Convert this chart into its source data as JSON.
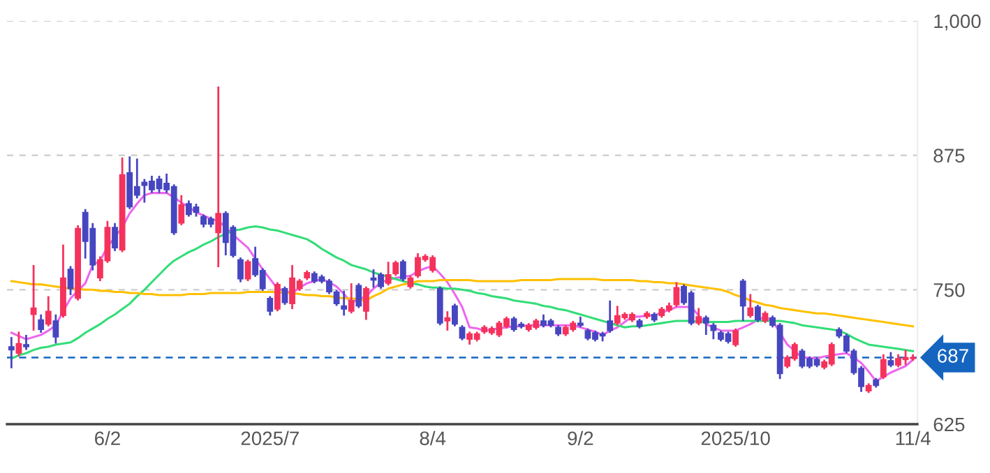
{
  "chart_data": {
    "type": "candlestick",
    "categories": [
      null,
      null,
      null,
      null,
      null,
      null,
      null,
      null,
      null,
      null,
      null,
      null,
      null,
      "6/2",
      null,
      null,
      null,
      null,
      null,
      null,
      null,
      null,
      null,
      null,
      null,
      null,
      null,
      null,
      null,
      null,
      null,
      null,
      null,
      null,
      null,
      "2025/7",
      null,
      null,
      null,
      null,
      null,
      null,
      null,
      null,
      null,
      null,
      null,
      null,
      null,
      null,
      null,
      null,
      null,
      null,
      null,
      null,
      null,
      "8/4",
      null,
      null,
      null,
      null,
      null,
      null,
      null,
      null,
      null,
      null,
      null,
      null,
      null,
      null,
      null,
      null,
      null,
      null,
      null,
      "9/2",
      null,
      null,
      null,
      null,
      null,
      null,
      null,
      null,
      null,
      null,
      null,
      null,
      null,
      null,
      null,
      null,
      null,
      null,
      null,
      null,
      "2025/10",
      null,
      null,
      null,
      null,
      null,
      null,
      null,
      null,
      null,
      null,
      null,
      null,
      null,
      null,
      null,
      null,
      null,
      null,
      null,
      null,
      null,
      null,
      null,
      "11/4"
    ],
    "ylim": [
      625,
      1000
    ],
    "yticks": [
      {
        "value": 625,
        "label": "625"
      },
      {
        "value": 750,
        "label": "750"
      },
      {
        "value": 875,
        "label": "875"
      },
      {
        "value": 1000,
        "label": "1,000"
      }
    ],
    "grid": "y",
    "ref_lines": [
      {
        "axis": "y",
        "value": 687,
        "label": "687",
        "color": "#1565c0",
        "line_style": "dashed"
      }
    ],
    "ohlc": [
      [
        697,
        706,
        677,
        694
      ],
      [
        691,
        711,
        688,
        700
      ],
      [
        699,
        708,
        694,
        697
      ],
      [
        727,
        773,
        712,
        733
      ],
      [
        722,
        727,
        710,
        713
      ],
      [
        718,
        744,
        716,
        730
      ],
      [
        721,
        727,
        700,
        706
      ],
      [
        726,
        792,
        724,
        761
      ],
      [
        769,
        772,
        745,
        751
      ],
      [
        742,
        810,
        740,
        807
      ],
      [
        822,
        825,
        779,
        795
      ],
      [
        807,
        812,
        768,
        773
      ],
      [
        761,
        781,
        758,
        778
      ],
      [
        777,
        814,
        775,
        808
      ],
      [
        808,
        812,
        786,
        789
      ],
      [
        787,
        873,
        785,
        857
      ],
      [
        859,
        874,
        825,
        827
      ],
      [
        846,
        872,
        835,
        838
      ],
      [
        850,
        853,
        831,
        847
      ],
      [
        851,
        856,
        840,
        843
      ],
      [
        853,
        856,
        840,
        844
      ],
      [
        849,
        858,
        840,
        843
      ],
      [
        846,
        848,
        801,
        803
      ],
      [
        812,
        838,
        810,
        829
      ],
      [
        830,
        833,
        818,
        820
      ],
      [
        827,
        830,
        818,
        822
      ],
      [
        818,
        820,
        808,
        811
      ],
      [
        816,
        818,
        808,
        811
      ],
      [
        803,
        939,
        771,
        821
      ],
      [
        821,
        823,
        782,
        794
      ],
      [
        808,
        810,
        780,
        782
      ],
      [
        778,
        780,
        757,
        760
      ],
      [
        760,
        778,
        758,
        776
      ],
      [
        779,
        790,
        762,
        764
      ],
      [
        768,
        770,
        749,
        751
      ],
      [
        742,
        744,
        726,
        730
      ],
      [
        732,
        757,
        730,
        755
      ],
      [
        751,
        753,
        736,
        738
      ],
      [
        737,
        773,
        732,
        761
      ],
      [
        751,
        760,
        749,
        758
      ],
      [
        761,
        768,
        759,
        766
      ],
      [
        765,
        767,
        756,
        758
      ],
      [
        762,
        764,
        756,
        758
      ],
      [
        758,
        760,
        746,
        748
      ],
      [
        748,
        750,
        735,
        737
      ],
      [
        735,
        749,
        726,
        732
      ],
      [
        730,
        756,
        728,
        740
      ],
      [
        754,
        756,
        733,
        735
      ],
      [
        730,
        753,
        722,
        751
      ],
      [
        761,
        769,
        752,
        759
      ],
      [
        764,
        766,
        751,
        753
      ],
      [
        756,
        776,
        754,
        764
      ],
      [
        765,
        777,
        763,
        775
      ],
      [
        776,
        778,
        758,
        760
      ],
      [
        753,
        763,
        751,
        761
      ],
      [
        763,
        784,
        761,
        780
      ],
      [
        778,
        783,
        776,
        781
      ],
      [
        768,
        782,
        766,
        780
      ],
      [
        751,
        753,
        717,
        719
      ],
      [
        721,
        730,
        712,
        724
      ],
      [
        735,
        737,
        716,
        718
      ],
      [
        715,
        717,
        703,
        705
      ],
      [
        704,
        711,
        699,
        709
      ],
      [
        704,
        711,
        702,
        709
      ],
      [
        711,
        717,
        709,
        715
      ],
      [
        710,
        716,
        708,
        714
      ],
      [
        708,
        721,
        706,
        719
      ],
      [
        716,
        725,
        714,
        723
      ],
      [
        723,
        725,
        711,
        713
      ],
      [
        718,
        720,
        714,
        716
      ],
      [
        713,
        719,
        711,
        717
      ],
      [
        715,
        723,
        713,
        721
      ],
      [
        721,
        727,
        715,
        717
      ],
      [
        721,
        723,
        715,
        717
      ],
      [
        715,
        717,
        707,
        709
      ],
      [
        709,
        717,
        707,
        715
      ],
      [
        713,
        721,
        711,
        719
      ],
      [
        719,
        725,
        715,
        717
      ],
      [
        712,
        714,
        703,
        705
      ],
      [
        710,
        712,
        702,
        704
      ],
      [
        709,
        711,
        702,
        707
      ],
      [
        721,
        740,
        710,
        712
      ],
      [
        719,
        735,
        717,
        726
      ],
      [
        724,
        729,
        722,
        727
      ],
      [
        722,
        729,
        720,
        727
      ],
      [
        721,
        723,
        714,
        716
      ],
      [
        725,
        730,
        723,
        728
      ],
      [
        727,
        729,
        720,
        722
      ],
      [
        726,
        734,
        724,
        732
      ],
      [
        731,
        738,
        729,
        735
      ],
      [
        736,
        757,
        734,
        752
      ],
      [
        753,
        755,
        736,
        738
      ],
      [
        747,
        749,
        717,
        719
      ],
      [
        719,
        733,
        717,
        725
      ],
      [
        724,
        726,
        708,
        719
      ],
      [
        717,
        719,
        704,
        712
      ],
      [
        710,
        712,
        702,
        704
      ],
      [
        709,
        711,
        700,
        702
      ],
      [
        699,
        714,
        697,
        712
      ],
      [
        758,
        760,
        721,
        735
      ],
      [
        726,
        746,
        724,
        733
      ],
      [
        734,
        736,
        720,
        722
      ],
      [
        721,
        730,
        719,
        728
      ],
      [
        724,
        726,
        715,
        717
      ],
      [
        717,
        719,
        667,
        672
      ],
      [
        679,
        689,
        677,
        687
      ],
      [
        686,
        701,
        684,
        699
      ],
      [
        693,
        695,
        677,
        679
      ],
      [
        686,
        688,
        677,
        679
      ],
      [
        685,
        687,
        678,
        680
      ],
      [
        678,
        685,
        676,
        683
      ],
      [
        681,
        701,
        679,
        699
      ],
      [
        713,
        715,
        705,
        707
      ],
      [
        707,
        709,
        691,
        693
      ],
      [
        693,
        695,
        671,
        673
      ],
      [
        677,
        679,
        655,
        660
      ],
      [
        656,
        663,
        654,
        661
      ],
      [
        666,
        668,
        659,
        661
      ],
      [
        669,
        690,
        667,
        685
      ],
      [
        684,
        692,
        678,
        680
      ],
      [
        680,
        690,
        678,
        686
      ],
      [
        685,
        694,
        680,
        687
      ],
      [
        686,
        690,
        684,
        687
      ]
    ],
    "colors": [
      "#4646c0",
      "#f5325c",
      "#4646c0",
      "#f5325c",
      "#4646c0",
      "#f5325c",
      "#4646c0",
      "#f5325c",
      "#4646c0",
      "#f5325c",
      "#4646c0",
      "#4646c0",
      "#f5325c",
      "#f5325c",
      "#4646c0",
      "#f5325c",
      "#4646c0",
      "#4646c0",
      "#4646c0",
      "#4646c0",
      "#4646c0",
      "#4646c0",
      "#4646c0",
      "#f5325c",
      "#4646c0",
      "#4646c0",
      "#4646c0",
      "#4646c0",
      "#f5325c",
      "#4646c0",
      "#4646c0",
      "#4646c0",
      "#f5325c",
      "#4646c0",
      "#4646c0",
      "#4646c0",
      "#f5325c",
      "#4646c0",
      "#f5325c",
      "#f5325c",
      "#f5325c",
      "#4646c0",
      "#4646c0",
      "#4646c0",
      "#4646c0",
      "#4646c0",
      "#f5325c",
      "#4646c0",
      "#f5325c",
      "#4646c0",
      "#4646c0",
      "#f5325c",
      "#f5325c",
      "#4646c0",
      "#f5325c",
      "#f5325c",
      "#f5325c",
      "#f5325c",
      "#4646c0",
      "#f5325c",
      "#4646c0",
      "#4646c0",
      "#f5325c",
      "#f5325c",
      "#f5325c",
      "#f5325c",
      "#f5325c",
      "#f5325c",
      "#4646c0",
      "#4646c0",
      "#f5325c",
      "#f5325c",
      "#4646c0",
      "#4646c0",
      "#4646c0",
      "#f5325c",
      "#f5325c",
      "#4646c0",
      "#4646c0",
      "#4646c0",
      "#4646c0",
      "#4646c0",
      "#f5325c",
      "#f5325c",
      "#f5325c",
      "#4646c0",
      "#f5325c",
      "#4646c0",
      "#f5325c",
      "#f5325c",
      "#f5325c",
      "#4646c0",
      "#4646c0",
      "#f5325c",
      "#4646c0",
      "#4646c0",
      "#4646c0",
      "#4646c0",
      "#f5325c",
      "#4646c0",
      "#f5325c",
      "#4646c0",
      "#f5325c",
      "#4646c0",
      "#4646c0",
      "#f5325c",
      "#f5325c",
      "#4646c0",
      "#4646c0",
      "#4646c0",
      "#f5325c",
      "#f5325c",
      "#4646c0",
      "#4646c0",
      "#4646c0",
      "#4646c0",
      "#f5325c",
      "#4646c0",
      "#f5325c",
      "#4646c0",
      "#f5325c",
      "#f5325c",
      "#f5325c"
    ],
    "series": [
      {
        "type": "line",
        "color": "#ee66ee",
        "values": [
          710,
          707,
          704,
          706,
          708,
          712,
          717,
          730,
          742,
          749,
          756,
          773,
          777,
          790,
          799,
          808,
          821,
          830,
          838,
          840,
          840,
          840,
          836,
          831,
          827,
          822,
          819,
          816,
          814,
          808,
          801,
          795,
          789,
          779,
          769,
          760,
          751,
          749,
          747,
          752,
          756,
          758,
          760,
          757,
          753,
          746,
          738,
          741,
          744,
          751,
          757,
          759,
          761,
          762,
          763,
          767,
          770,
          772,
          765,
          757,
          746,
          734,
          715,
          714,
          712,
          713,
          714,
          715,
          716,
          716,
          717,
          717,
          717,
          717,
          717,
          717,
          717,
          715,
          713,
          711,
          708,
          712,
          715,
          720,
          725,
          725,
          726,
          726,
          729,
          731,
          734,
          734,
          734,
          726,
          718,
          715,
          712,
          712,
          712,
          715,
          718,
          722,
          725,
          721,
          710,
          699,
          693,
          687,
          687,
          686,
          688,
          689,
          690,
          691,
          687,
          682,
          674,
          665,
          669,
          673,
          676,
          679,
          685
        ]
      },
      {
        "type": "line",
        "color": "#33dd77",
        "values": [
          686,
          689,
          691,
          694,
          696,
          697,
          699,
          700,
          701,
          705,
          710,
          714,
          718,
          723,
          727,
          732,
          737,
          744,
          750,
          757,
          764,
          771,
          777,
          781,
          785,
          788,
          792,
          795,
          799,
          802,
          805,
          806,
          808,
          809,
          808,
          806,
          805,
          803,
          801,
          799,
          797,
          793,
          788,
          784,
          780,
          777,
          773,
          771,
          769,
          766,
          764,
          762,
          760,
          758,
          756,
          755,
          753,
          752,
          752,
          751,
          751,
          750,
          749,
          747,
          746,
          744,
          743,
          742,
          740,
          739,
          738,
          737,
          735,
          734,
          732,
          731,
          729,
          727,
          725,
          723,
          721,
          719,
          717,
          715,
          716,
          716,
          717,
          718,
          719,
          720,
          721,
          721,
          721,
          720,
          720,
          720,
          720,
          720,
          721,
          721,
          721,
          721,
          721,
          721,
          721,
          720,
          719,
          717,
          716,
          715,
          714,
          713,
          712,
          709,
          705,
          702,
          699,
          698,
          697,
          696,
          695,
          694,
          693
        ]
      },
      {
        "type": "line",
        "color": "#ffc000",
        "values": [
          758,
          757,
          756,
          755,
          755,
          754,
          753,
          752,
          751,
          751,
          750,
          750,
          749,
          749,
          748,
          748,
          747,
          747,
          746,
          746,
          745,
          745,
          745,
          745,
          746,
          746,
          746,
          747,
          747,
          747,
          747,
          747,
          748,
          748,
          748,
          748,
          748,
          747,
          747,
          746,
          745,
          745,
          744,
          744,
          743,
          742,
          742,
          741,
          740,
          744,
          747,
          751,
          753,
          755,
          756,
          758,
          758,
          758,
          759,
          759,
          759,
          759,
          759,
          758,
          758,
          758,
          758,
          758,
          758,
          759,
          759,
          759,
          759,
          759,
          760,
          760,
          760,
          760,
          760,
          760,
          759,
          759,
          759,
          759,
          759,
          758,
          758,
          757,
          757,
          756,
          756,
          755,
          754,
          753,
          752,
          751,
          750,
          748,
          745,
          743,
          740,
          738,
          736,
          735,
          733,
          732,
          731,
          730,
          729,
          728,
          728,
          727,
          726,
          725,
          724,
          723,
          722,
          721,
          720,
          719,
          718,
          717,
          716
        ]
      }
    ]
  }
}
